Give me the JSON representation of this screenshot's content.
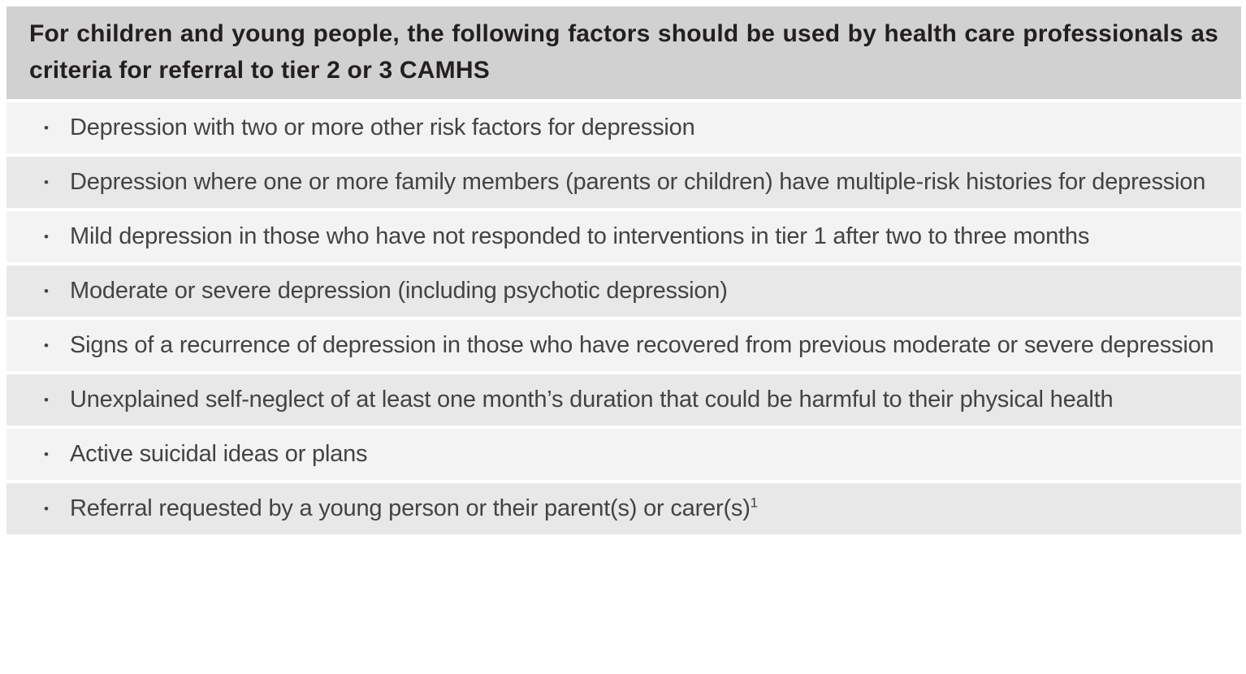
{
  "header": {
    "text": "For children and young people, the following factors should be used by health care professionals as criteria for referral to tier 2 or 3 CAMHS"
  },
  "criteria": {
    "bullet": "•",
    "items": [
      {
        "text": "Depression with two or more other risk factors for depression"
      },
      {
        "text": "Depression where one or more family members (parents or children) have multiple-risk histories for depression"
      },
      {
        "text": "Mild depression in those who have not responded to interventions in tier 1 after two to three months"
      },
      {
        "text": "Moderate or severe depression (including psychotic depression)"
      },
      {
        "text": "Signs of a recurrence of depression in those who have recovered from previous moderate or severe depression"
      },
      {
        "text": "Unexplained self-neglect of at least one month’s duration that could be harmful to their physical health"
      },
      {
        "text": "Active suicidal ideas or plans"
      },
      {
        "text": "Referral requested by a young person or their parent(s) or carer(s)",
        "superscript": "1"
      }
    ]
  },
  "colors": {
    "header_bg": "#d1d1d1",
    "row_odd_bg": "#f3f3f3",
    "row_even_bg": "#e8e8e8",
    "header_text": "#231f20",
    "body_text": "#434343",
    "page_bg": "#ffffff"
  }
}
